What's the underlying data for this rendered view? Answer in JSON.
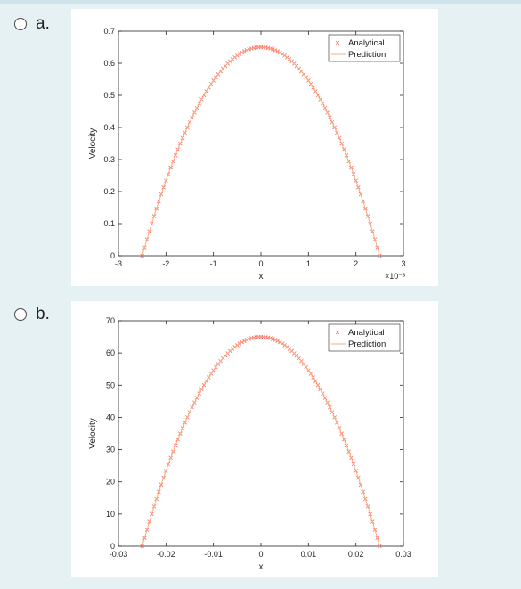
{
  "options": [
    {
      "label": "a."
    },
    {
      "label": "b."
    }
  ],
  "colors": {
    "marker": "#ff6a6a",
    "line": "#f2b27a",
    "axis": "#262626",
    "page_bg": "#e6f1f4"
  },
  "chart_data": [
    {
      "type": "line",
      "ylabel": "Velocity",
      "xlabel": "x",
      "x_exponent_label": "×10⁻³",
      "xlim": [
        -0.003,
        0.003
      ],
      "ylim": [
        0,
        0.7
      ],
      "xticks": [
        -0.003,
        -0.002,
        -0.001,
        0,
        0.001,
        0.002,
        0.003
      ],
      "xticklabels": [
        "-3",
        "-2",
        "-1",
        "0",
        "1",
        "2",
        "3"
      ],
      "yticks": [
        0,
        0.1,
        0.2,
        0.3,
        0.4,
        0.5,
        0.6,
        0.7
      ],
      "yticklabels": [
        "0",
        "0.1",
        "0.2",
        "0.3",
        "0.4",
        "0.5",
        "0.6",
        "0.7"
      ],
      "grid": false,
      "legend_position": "top-right",
      "series": [
        {
          "name": "Analytical",
          "style": "x-markers",
          "function": "parabola",
          "vertex": [
            0,
            0.65
          ],
          "x_roots": [
            -0.0025,
            0.0025
          ],
          "n_points": 101
        },
        {
          "name": "Prediction",
          "style": "line",
          "function": "parabola",
          "vertex": [
            0,
            0.65
          ],
          "x_roots": [
            -0.0025,
            0.0025
          ]
        }
      ]
    },
    {
      "type": "line",
      "ylabel": "Velocity",
      "xlabel": "x",
      "xlim": [
        -0.03,
        0.03
      ],
      "ylim": [
        0,
        70
      ],
      "xticks": [
        -0.03,
        -0.02,
        -0.01,
        0,
        0.01,
        0.02,
        0.03
      ],
      "xticklabels": [
        "-0.03",
        "-0.02",
        "-0.01",
        "0",
        "0.01",
        "0.02",
        "0.03"
      ],
      "yticks": [
        0,
        10,
        20,
        30,
        40,
        50,
        60,
        70
      ],
      "yticklabels": [
        "0",
        "10",
        "20",
        "30",
        "40",
        "50",
        "60",
        "70"
      ],
      "grid": false,
      "legend_position": "top-right",
      "series": [
        {
          "name": "Analytical",
          "style": "x-markers",
          "function": "parabola",
          "vertex": [
            0,
            65
          ],
          "x_roots": [
            -0.025,
            0.025
          ],
          "n_points": 101
        },
        {
          "name": "Prediction",
          "style": "line",
          "function": "parabola",
          "vertex": [
            0,
            65
          ],
          "x_roots": [
            -0.025,
            0.025
          ]
        }
      ]
    }
  ]
}
